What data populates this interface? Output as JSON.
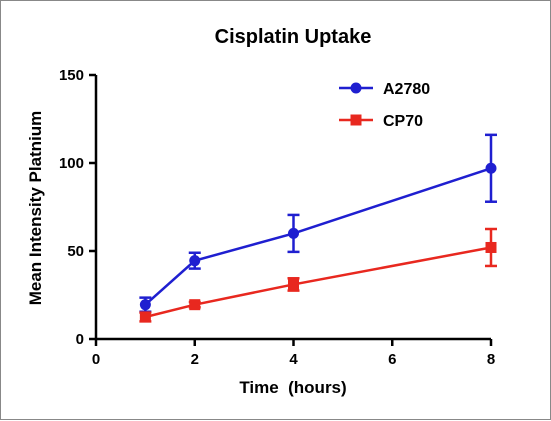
{
  "chart_data": {
    "type": "line",
    "title": "Cisplatin Uptake",
    "xlabel": "Time  (hours)",
    "ylabel": "Mean Intensity Platnium",
    "xlim": [
      0,
      8
    ],
    "ylim": [
      0,
      150
    ],
    "xticks": [
      "0",
      "2",
      "4",
      "6",
      "8"
    ],
    "yticks": [
      "0",
      "50",
      "100",
      "150"
    ],
    "xtick_values": [
      0,
      2,
      4,
      6,
      8
    ],
    "ytick_values": [
      0,
      50,
      100,
      150
    ],
    "legend_position": "top-right",
    "grid": false,
    "series": [
      {
        "name": "A2780",
        "color": "#1f1fd0",
        "marker": "circle",
        "x": [
          1,
          2,
          4,
          8
        ],
        "y": [
          19.5,
          44.5,
          60,
          97
        ],
        "err": [
          4,
          4.5,
          10.5,
          19
        ]
      },
      {
        "name": "CP70",
        "color": "#e8281f",
        "marker": "square",
        "x": [
          1,
          2,
          4,
          8
        ],
        "y": [
          12.5,
          19.5,
          31,
          52
        ],
        "err": [
          2.5,
          1.5,
          3.5,
          10.5
        ]
      }
    ]
  }
}
